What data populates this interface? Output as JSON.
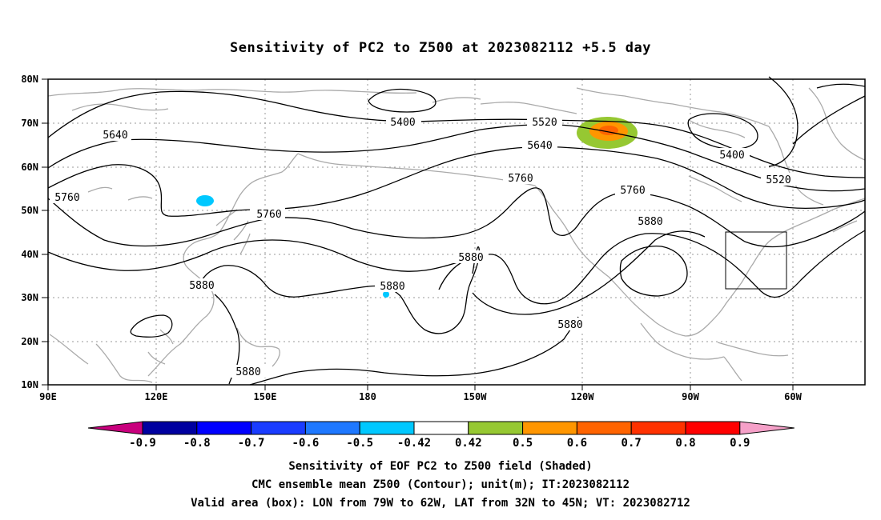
{
  "title": "Sensitivity of PC2 to Z500 at 2023082112 +5.5 day",
  "lat_labels": [
    "80N",
    "70N",
    "60N",
    "50N",
    "40N",
    "30N",
    "20N",
    "10N"
  ],
  "lon_labels": [
    "90E",
    "120E",
    "150E",
    "180",
    "150W",
    "120W",
    "90W",
    "60W"
  ],
  "contour_labels": [
    "5400",
    "5520",
    "5640",
    "5640",
    "5760",
    "5760",
    "5760",
    "5760",
    "5880",
    "5880",
    "5880",
    "5880",
    "5880",
    "5880",
    "5400",
    "5520"
  ],
  "colorbar": {
    "labels": [
      "-0.9",
      "-0.8",
      "-0.7",
      "-0.6",
      "-0.5",
      "-0.42",
      "0.42",
      "0.5",
      "0.6",
      "0.7",
      "0.8",
      "0.9"
    ],
    "colors": [
      "#0000a0",
      "#0000ff",
      "#1a3cff",
      "#1e78ff",
      "#00c8ff",
      "#ffffff",
      "#96c832",
      "#ff9600",
      "#ff6400",
      "#ff3200",
      "#ff0000"
    ],
    "low_end_color": "#c8007d",
    "high_end_color": "#f5a0c8"
  },
  "captions": [
    "Sensitivity of EOF PC2 to Z500 field (Shaded)",
    "CMC ensemble mean Z500 (Contour); unit(m); IT:2023082112",
    "Valid area (box): LON from 79W to 62W, LAT from 32N to 45N; VT: 2023082712"
  ],
  "colors": {
    "coast": "#aaaaaa",
    "contour": "#000000",
    "grid": "#999999"
  }
}
